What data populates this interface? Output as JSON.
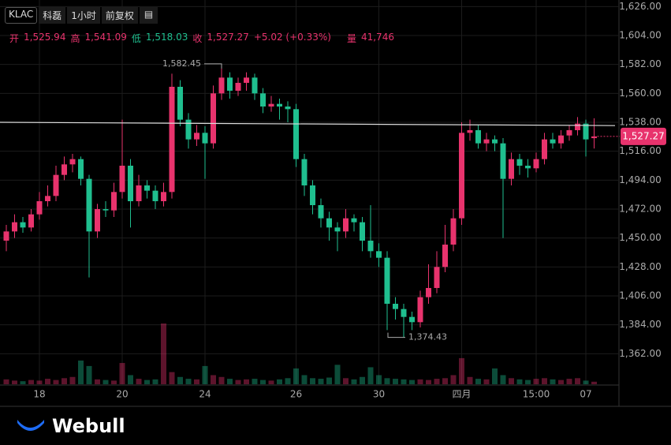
{
  "header": {
    "symbol": "KLAC",
    "name": "科磊",
    "interval": "1小时",
    "adjust": "前复权",
    "fields": [
      {
        "label": "开",
        "value": "1,525.94"
      },
      {
        "label": "高",
        "value": "1,541.09"
      },
      {
        "label": "低",
        "value": "1,518.03"
      },
      {
        "label": "收",
        "value": "1,527.27"
      }
    ],
    "change": "+5.02 (+0.33%)",
    "volume_label": "量",
    "volume": "41,746"
  },
  "footer": {
    "brand": "Webull"
  },
  "chart_data": {
    "type": "candlestick",
    "up_color": "#e8336d",
    "down_color": "#1fbf8f",
    "grid": true,
    "categories": [
      null,
      null,
      null,
      null,
      "18",
      null,
      null,
      null,
      null,
      null,
      null,
      null,
      null,
      null,
      "20",
      null,
      null,
      null,
      null,
      null,
      null,
      null,
      null,
      null,
      "24",
      null,
      null,
      null,
      null,
      null,
      null,
      null,
      null,
      null,
      null,
      "26",
      null,
      null,
      null,
      null,
      null,
      null,
      null,
      null,
      null,
      "30",
      null,
      null,
      null,
      null,
      null,
      null,
      null,
      null,
      null,
      "四月",
      null,
      null,
      null,
      null,
      null,
      null,
      null,
      null,
      "15:00",
      null,
      null,
      null,
      null,
      null,
      "07",
      null
    ],
    "open": [
      1448,
      1455,
      1462,
      1458,
      1468,
      1478,
      1482,
      1498,
      1506,
      1510,
      1495,
      1455,
      1472,
      1471,
      1485,
      1505,
      1478,
      1490,
      1486,
      1478,
      1485,
      1565,
      1540,
      1525,
      1530,
      1522,
      1560,
      1572,
      1562,
      1568,
      1572,
      1560,
      1550,
      1552,
      1550,
      1548,
      1510,
      1490,
      1475,
      1465,
      1458,
      1455,
      1465,
      1462,
      1448,
      1440,
      1435,
      1400,
      1396,
      1390,
      1386,
      1405,
      1412,
      1428,
      1445,
      1465,
      1530,
      1532,
      1522,
      1525,
      1522,
      1495,
      1510,
      1505,
      1503,
      1510,
      1525,
      1522,
      1528,
      1532,
      1537,
      1525.94
    ],
    "high": [
      1460,
      1468,
      1466,
      1472,
      1485,
      1490,
      1505,
      1512,
      1514,
      1512,
      1498,
      1476,
      1478,
      1492,
      1540,
      1510,
      1498,
      1494,
      1490,
      1492,
      1575,
      1570,
      1545,
      1536,
      1535,
      1566,
      1582.45,
      1576,
      1572,
      1576,
      1575,
      1564,
      1558,
      1556,
      1554,
      1552,
      1514,
      1494,
      1480,
      1470,
      1462,
      1472,
      1468,
      1466,
      1475,
      1446,
      1440,
      1405,
      1400,
      1394,
      1410,
      1430,
      1440,
      1460,
      1472,
      1538,
      1540,
      1536,
      1530,
      1528,
      1526,
      1515,
      1514,
      1510,
      1515,
      1530,
      1530,
      1532,
      1536,
      1542,
      1540,
      1541.09
    ],
    "low": [
      1440,
      1450,
      1454,
      1455,
      1464,
      1474,
      1478,
      1494,
      1500,
      1490,
      1420,
      1450,
      1466,
      1466,
      1480,
      1458,
      1474,
      1480,
      1472,
      1474,
      1480,
      1535,
      1518,
      1520,
      1495,
      1518,
      1555,
      1556,
      1558,
      1562,
      1555,
      1545,
      1546,
      1540,
      1538,
      1504,
      1482,
      1468,
      1458,
      1448,
      1440,
      1450,
      1455,
      1440,
      1435,
      1428,
      1380,
      1388,
      1374.43,
      1380,
      1382,
      1400,
      1408,
      1424,
      1440,
      1460,
      1524,
      1518,
      1516,
      1516,
      1450,
      1490,
      1498,
      1496,
      1500,
      1506,
      1518,
      1518,
      1524,
      1528,
      1512,
      1518.03
    ],
    "close": [
      1455,
      1462,
      1458,
      1468,
      1478,
      1482,
      1498,
      1506,
      1510,
      1495,
      1455,
      1472,
      1471,
      1485,
      1505,
      1478,
      1490,
      1486,
      1478,
      1485,
      1565,
      1540,
      1525,
      1530,
      1522,
      1560,
      1572,
      1562,
      1568,
      1572,
      1560,
      1550,
      1552,
      1550,
      1548,
      1510,
      1490,
      1475,
      1465,
      1458,
      1455,
      1465,
      1462,
      1448,
      1440,
      1435,
      1400,
      1396,
      1390,
      1386,
      1405,
      1412,
      1428,
      1445,
      1465,
      1530,
      1532,
      1522,
      1525,
      1522,
      1495,
      1510,
      1505,
      1503,
      1510,
      1525,
      1522,
      1528,
      1532,
      1537,
      1525,
      1527.27
    ],
    "volume": [
      80000,
      60000,
      50000,
      70000,
      60000,
      90000,
      70000,
      100000,
      120000,
      390000,
      300000,
      80000,
      70000,
      60000,
      350000,
      150000,
      90000,
      70000,
      80000,
      1000000,
      200000,
      120000,
      90000,
      80000,
      300000,
      150000,
      120000,
      90000,
      70000,
      80000,
      90000,
      70000,
      60000,
      80000,
      100000,
      260000,
      150000,
      100000,
      90000,
      110000,
      320000,
      100000,
      80000,
      120000,
      280000,
      150000,
      100000,
      90000,
      80000,
      70000,
      80000,
      70000,
      90000,
      100000,
      150000,
      430000,
      120000,
      90000,
      80000,
      260000,
      150000,
      100000,
      80000,
      70000,
      90000,
      100000,
      80000,
      70000,
      90000,
      100000,
      60000,
      41746
    ],
    "ylim": [
      1340,
      1631
    ],
    "yticks": [
      {
        "value": 1362,
        "label": "1,362.00"
      },
      {
        "value": 1384,
        "label": "1,384.00"
      },
      {
        "value": 1406,
        "label": "1,406.00"
      },
      {
        "value": 1428,
        "label": "1,428.00"
      },
      {
        "value": 1450,
        "label": "1,450.00"
      },
      {
        "value": 1472,
        "label": "1,472.00"
      },
      {
        "value": 1494,
        "label": "1,494.00"
      },
      {
        "value": 1516,
        "label": "1,516.00"
      },
      {
        "value": 1538,
        "label": "1,538.00"
      },
      {
        "value": 1560,
        "label": "1,560.00"
      },
      {
        "value": 1582,
        "label": "1,582.00"
      },
      {
        "value": 1604,
        "label": "1,604.00"
      },
      {
        "value": 1626,
        "label": "1,626.00"
      }
    ],
    "trendline": [
      1538,
      1535.5
    ],
    "annotations": [
      {
        "value": 1582.45,
        "label": "1,582.45"
      },
      {
        "value": 1374.43,
        "label": "1,374.43"
      }
    ],
    "last_price": {
      "value": 1527.27,
      "label": "1,527.27"
    }
  }
}
